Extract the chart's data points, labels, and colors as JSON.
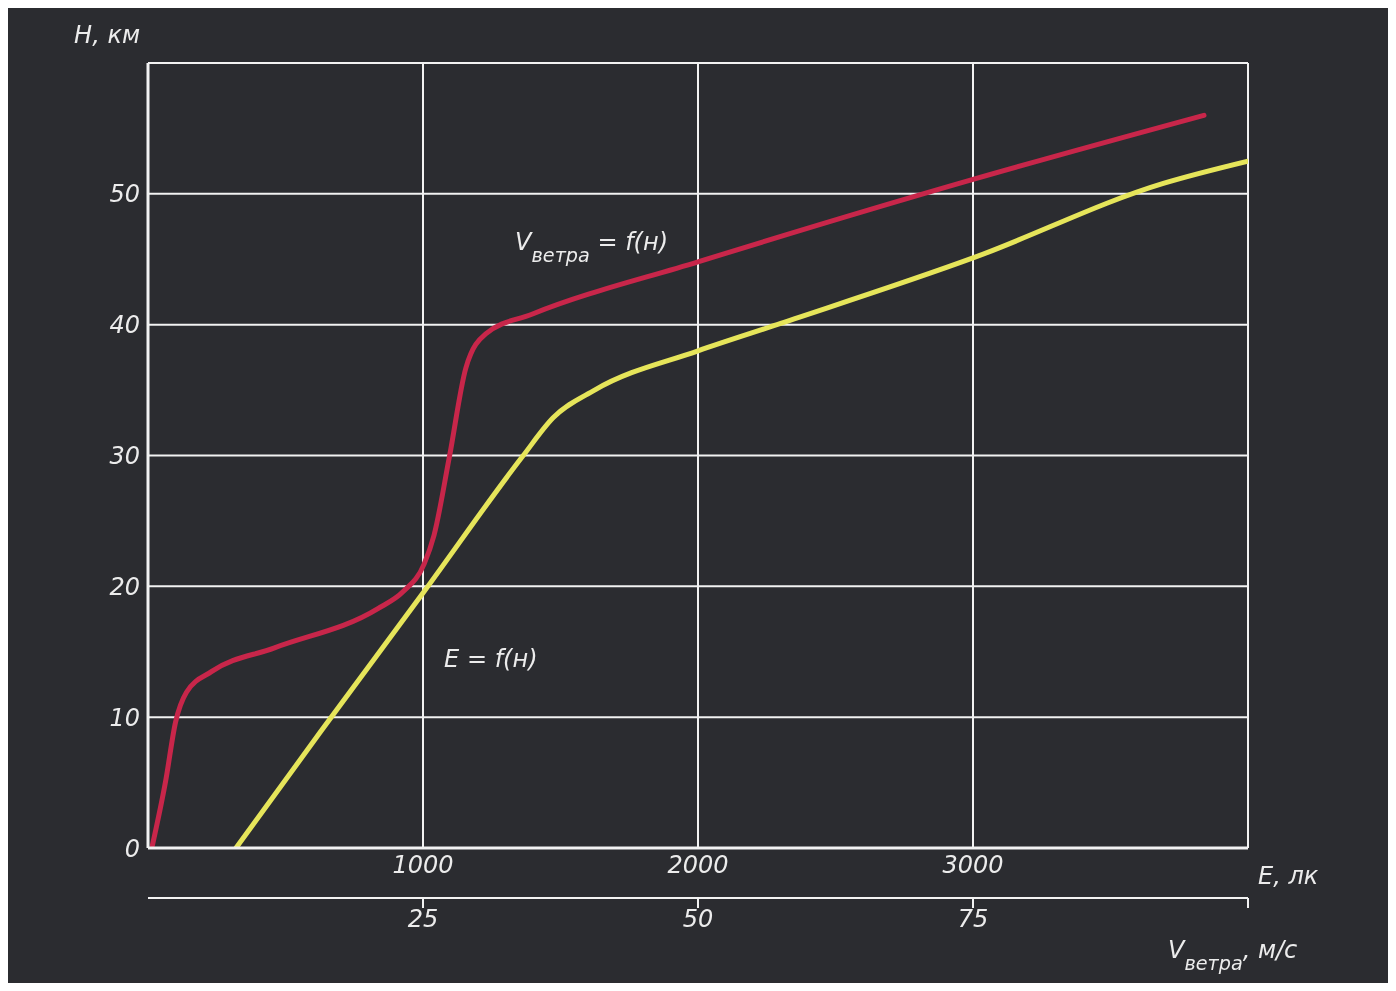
{
  "chart_data": {
    "type": "line",
    "xlabel": "E, лк",
    "x2label": "V$_{ветра}$, м/с",
    "ylabel": "Н, км",
    "xlim": [
      0,
      4000
    ],
    "xticks": [
      1000,
      2000,
      3000,
      {
        "value": 4000,
        "label": null
      }
    ],
    "x2lim": [
      0,
      100
    ],
    "x2ticks": [
      25,
      50,
      75,
      {
        "value": 100,
        "label": null
      }
    ],
    "ylim": [
      0,
      60
    ],
    "yticks": [
      {
        "value": 0,
        "label": "0"
      },
      10,
      20,
      30,
      40,
      50,
      {
        "value": 60,
        "label": null
      }
    ],
    "grid": true,
    "series": [
      {
        "name": "V$_{ветра}$ = f(н)",
        "color": "#c8264a",
        "axis": "x2",
        "x": [
          0.4,
          1.6,
          2.5,
          3.5,
          5.8,
          11.5,
          20.9,
          23.2,
          25.1,
          26.0,
          27.4,
          28.9,
          30.7,
          34.9,
          50,
          75,
          96
        ],
        "values": [
          0.2,
          5.1,
          9.6,
          11.9,
          13.5,
          15.3,
          18.3,
          19.6,
          21.7,
          23.9,
          29.9,
          36.7,
          39.3,
          40.8,
          44.8,
          51.1,
          56.0
        ]
      },
      {
        "name": "E = f(н)",
        "color": "#e6e55a",
        "x": [
          320,
          628,
          1004,
          1361,
          1474,
          1624,
          2000,
          2301,
          3000,
          3692,
          4000
        ],
        "values": [
          0,
          8.9,
          19.6,
          29.9,
          32.9,
          35.0,
          38.0,
          40.1,
          45.1,
          50.8,
          52.5
        ]
      }
    ]
  }
}
